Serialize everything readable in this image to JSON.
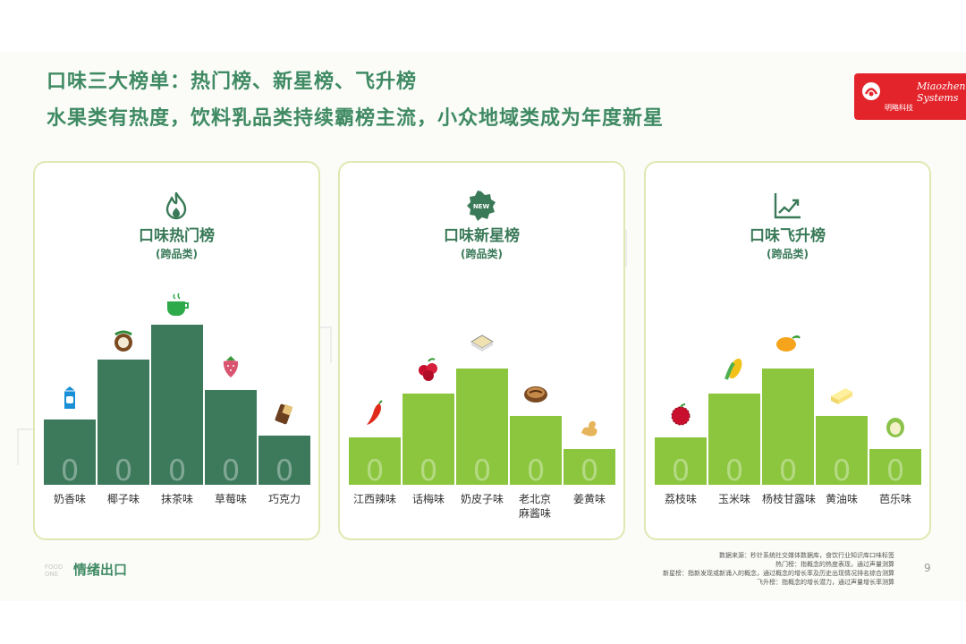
{
  "header": {
    "title_line1": "口味三大榜单：热门榜、新星榜、飞升榜",
    "title_line2": "水果类有热度，饮料乳品类持续霸榜主流，小众地域类成为年度新星"
  },
  "logo": {
    "en": "Miaozhen Systems",
    "cn": "明略科技",
    "color": "#e3242b"
  },
  "colors": {
    "hot": "#3d7a5c",
    "new": "#8cc63f",
    "rise": "#8cc63f",
    "title": "#3f8a63"
  },
  "cards": [
    {
      "title": "口味热门榜",
      "subtitle": "(跨品类)",
      "icon": "flame-icon",
      "items": [
        {
          "label": "奶香味",
          "rank": "0",
          "icon": "milk-carton-icon"
        },
        {
          "label": "椰子味",
          "rank": "0",
          "icon": "coconut-icon"
        },
        {
          "label": "抹茶味",
          "rank": "0",
          "icon": "matcha-cup-icon"
        },
        {
          "label": "草莓味",
          "rank": "0",
          "icon": "strawberry-icon"
        },
        {
          "label": "巧克力",
          "rank": "0",
          "icon": "chocolate-icon"
        }
      ]
    },
    {
      "title": "口味新星榜",
      "subtitle": "(跨品类)",
      "icon": "new-badge-icon",
      "items": [
        {
          "label": "江西辣味",
          "rank": "0",
          "icon": "chili-icon"
        },
        {
          "label": "话梅味",
          "rank": "0",
          "icon": "plum-icon"
        },
        {
          "label": "奶皮子味",
          "rank": "0",
          "icon": "milk-skin-icon"
        },
        {
          "label": "老北京麻酱味",
          "rank": "0",
          "icon": "sesame-paste-icon"
        },
        {
          "label": "姜黄味",
          "rank": "0",
          "icon": "ginger-icon"
        }
      ]
    },
    {
      "title": "口味飞升榜",
      "subtitle": "(跨品类)",
      "icon": "rising-chart-icon",
      "items": [
        {
          "label": "荔枝味",
          "rank": "0",
          "icon": "lychee-icon"
        },
        {
          "label": "玉米味",
          "rank": "0",
          "icon": "corn-icon"
        },
        {
          "label": "杨枝甘露味",
          "rank": "0",
          "icon": "mango-icon"
        },
        {
          "label": "黄油味",
          "rank": "0",
          "icon": "butter-icon"
        },
        {
          "label": "芭乐味",
          "rank": "0",
          "icon": "guava-icon"
        }
      ]
    }
  ],
  "footer": {
    "brand": "情绪出口",
    "brand_prefix": "FOOD ONE",
    "notes": [
      "数据来源：秒针系统社交媒体数据库，食饮行业知识库口味标签",
      "热门榜：指概念的热度表现，通过声量测算",
      "新星榜：指新发现或新涌入的概念，通过概念的增长率及历史出现情况排名综合测算",
      "飞升榜：指概念的增长潜力，通过声量增长率测算"
    ],
    "page": "9"
  }
}
